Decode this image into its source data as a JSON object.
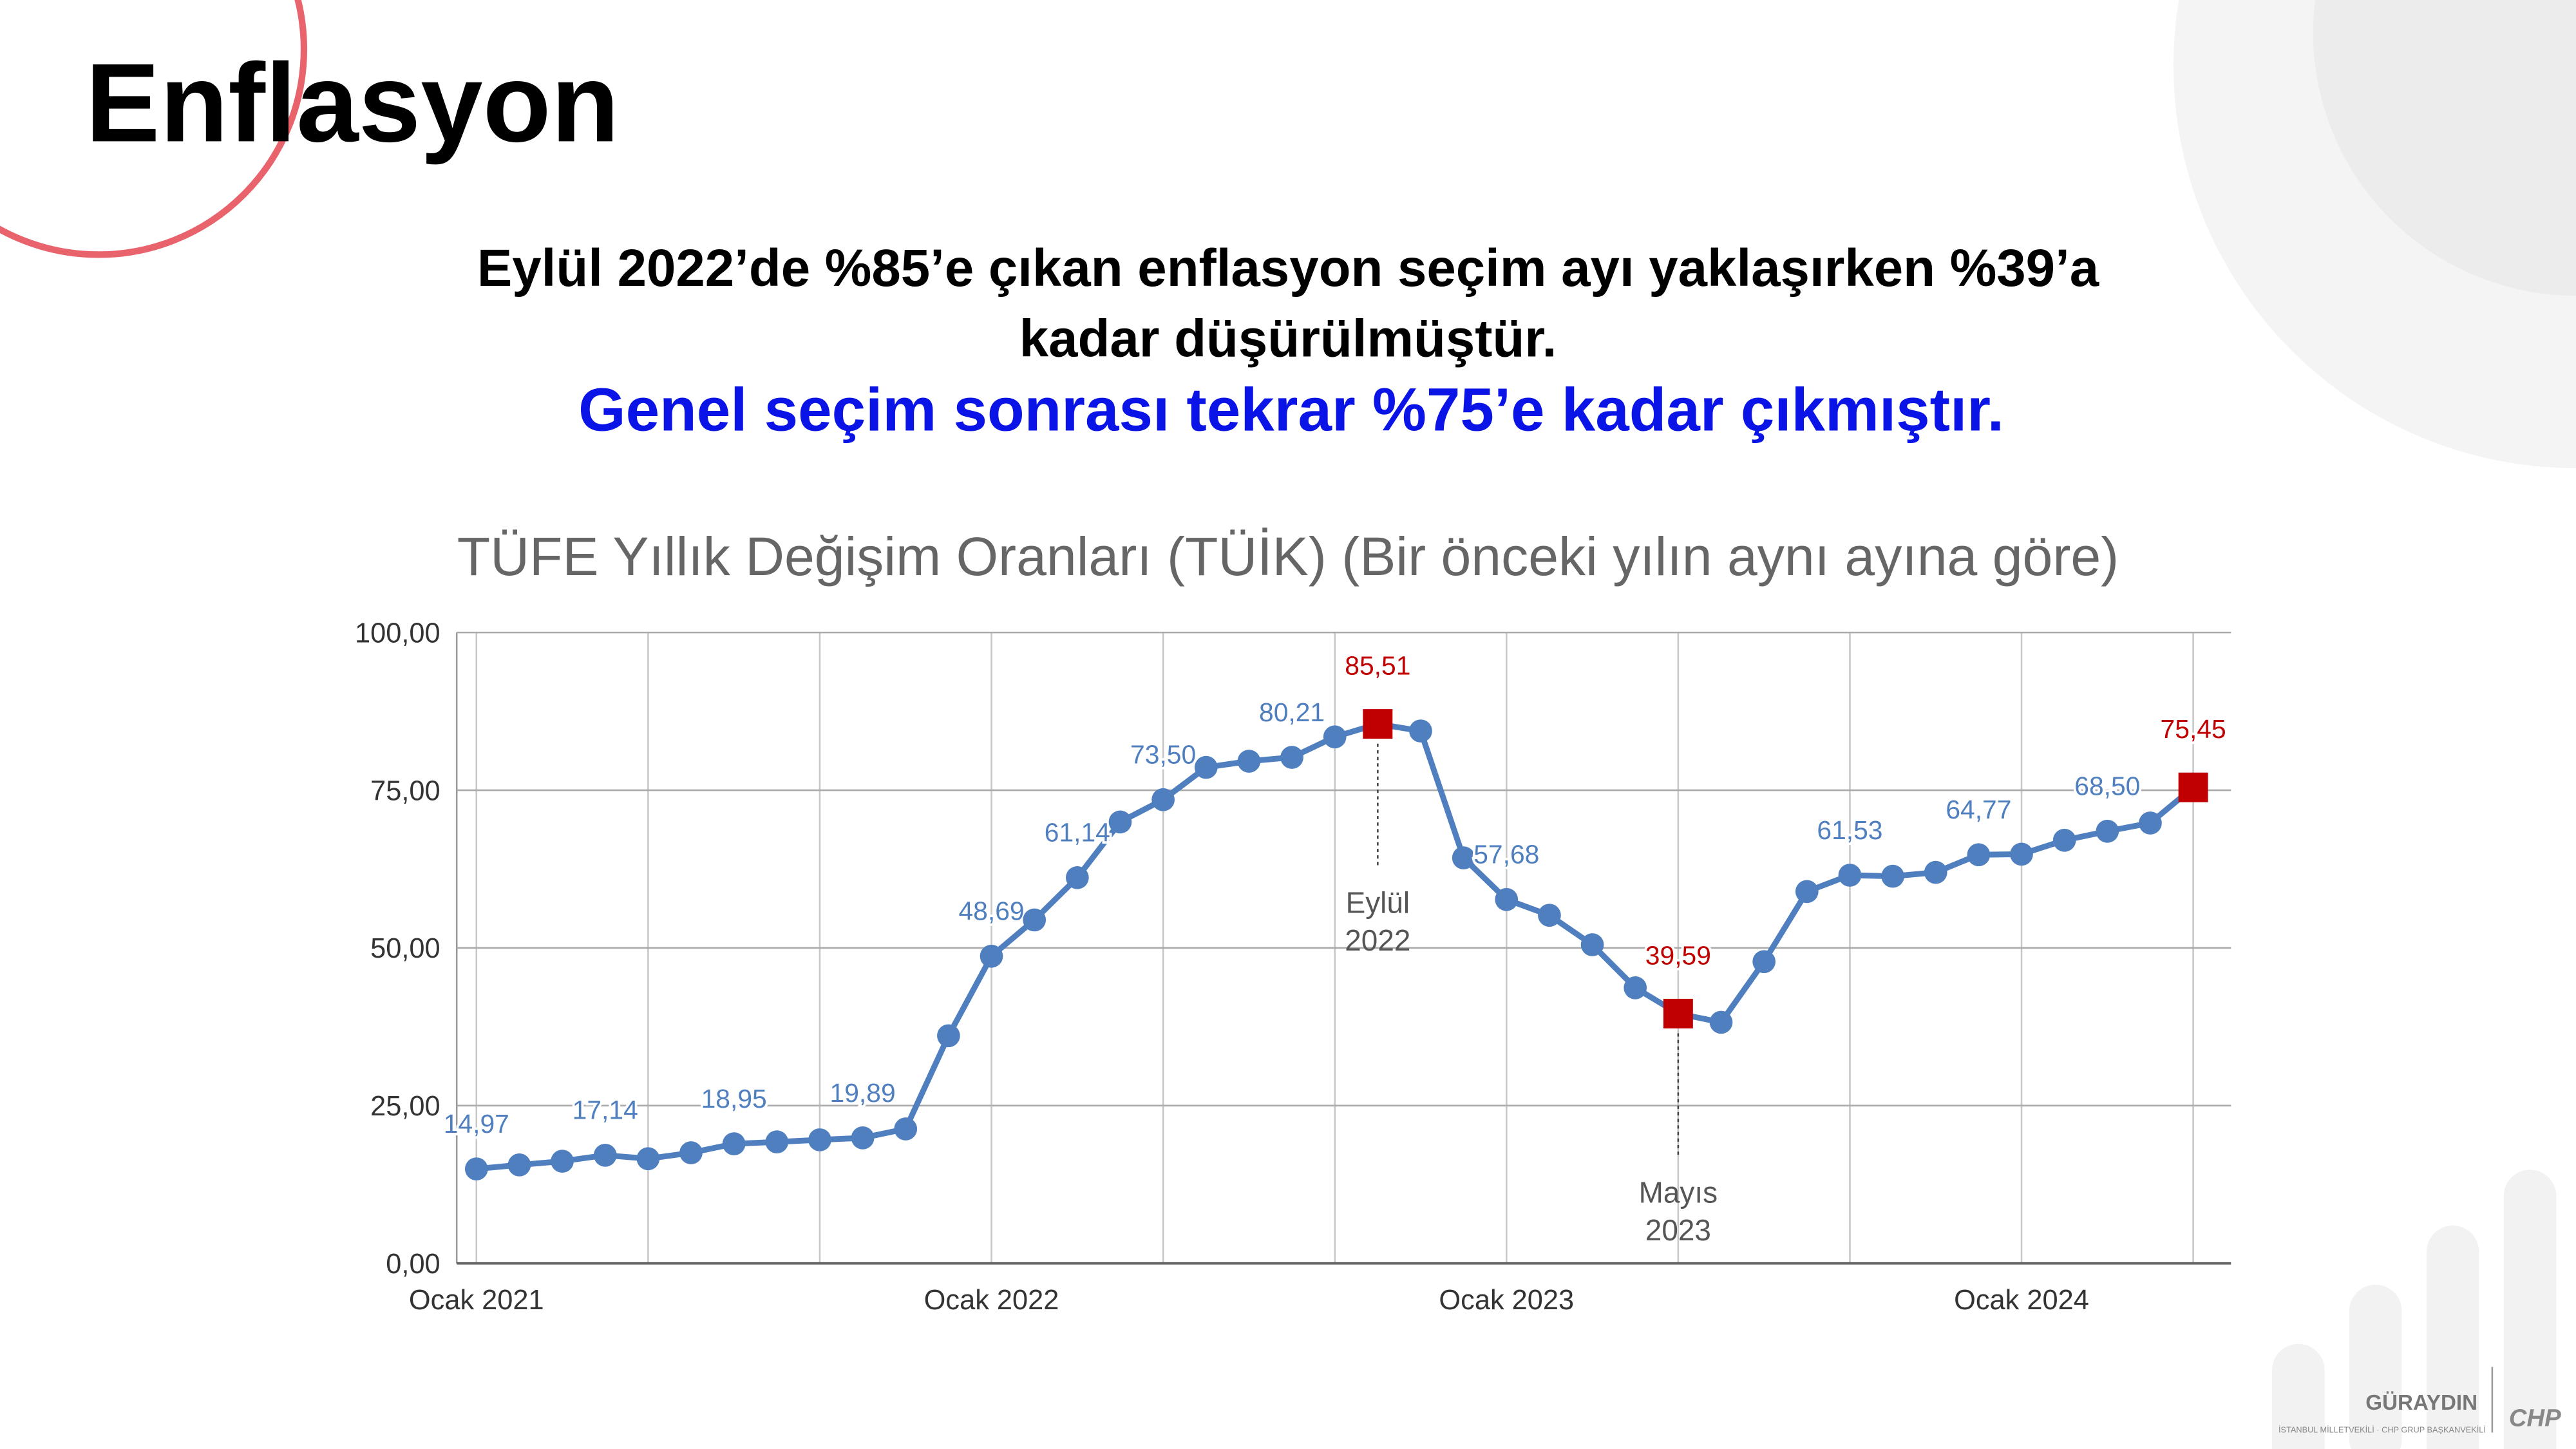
{
  "header": {
    "title": "Enflasyon",
    "lines": [
      "Eylül 2022’de %85’e çıkan enflasyon seçim ayı yaklaşırken %39’a",
      "kadar düşürülmüştür."
    ],
    "highlight": "Genel seçim sonrası tekrar %75’e kadar çıkmıştır."
  },
  "chart_data": {
    "type": "line",
    "title": "TÜFE Yıllık Değişim Oranları (TÜİK) (Bir önceki yılın aynı ayına göre)",
    "categories": [
      "Ocak 2021",
      null,
      null,
      null,
      null,
      null,
      null,
      null,
      null,
      null,
      null,
      null,
      "Ocak 2022",
      null,
      null,
      null,
      null,
      null,
      null,
      null,
      null,
      null,
      null,
      null,
      "Ocak 2023",
      null,
      null,
      null,
      null,
      null,
      null,
      null,
      null,
      null,
      null,
      null,
      "Ocak 2024",
      null,
      null,
      null,
      null
    ],
    "series": [
      {
        "color": "#4f7fbf",
        "values": [
          14.97,
          15.61,
          16.19,
          17.14,
          16.59,
          17.53,
          18.95,
          19.25,
          19.58,
          19.89,
          21.31,
          36.08,
          48.69,
          54.44,
          61.14,
          69.97,
          73.5,
          78.62,
          79.6,
          80.21,
          83.45,
          85.51,
          84.39,
          64.27,
          57.68,
          55.18,
          50.51,
          43.68,
          39.59,
          38.21,
          47.83,
          58.94,
          61.53,
          61.36,
          61.98,
          64.77,
          64.86,
          67.07,
          68.5,
          69.8,
          75.45
        ],
        "value_labels": [
          "14,97",
          null,
          null,
          "17,14",
          null,
          null,
          "18,95",
          null,
          null,
          "19,89",
          null,
          null,
          "48,69",
          null,
          "61,14",
          null,
          "73,50",
          null,
          null,
          "80,21",
          null,
          "85,51",
          null,
          null,
          "57,68",
          null,
          null,
          null,
          "39,59",
          null,
          null,
          null,
          "61,53",
          null,
          null,
          "64,77",
          null,
          null,
          "68,50",
          null,
          "75,45"
        ],
        "marker_colors": [
          "#4f7fbf",
          "#4f7fbf",
          "#4f7fbf",
          "#4f7fbf",
          "#4f7fbf",
          "#4f7fbf",
          "#4f7fbf",
          "#4f7fbf",
          "#4f7fbf",
          "#4f7fbf",
          "#4f7fbf",
          "#4f7fbf",
          "#4f7fbf",
          "#4f7fbf",
          "#4f7fbf",
          "#4f7fbf",
          "#4f7fbf",
          "#4f7fbf",
          "#4f7fbf",
          "#4f7fbf",
          "#4f7fbf",
          "#c00000",
          "#4f7fbf",
          "#4f7fbf",
          "#4f7fbf",
          "#4f7fbf",
          "#4f7fbf",
          "#4f7fbf",
          "#c00000",
          "#4f7fbf",
          "#4f7fbf",
          "#4f7fbf",
          "#4f7fbf",
          "#4f7fbf",
          "#4f7fbf",
          "#4f7fbf",
          "#4f7fbf",
          "#4f7fbf",
          "#4f7fbf",
          "#4f7fbf",
          "#c00000"
        ]
      }
    ],
    "annotations": [
      null,
      null,
      null,
      null,
      null,
      null,
      null,
      null,
      null,
      null,
      null,
      null,
      null,
      null,
      null,
      null,
      null,
      null,
      null,
      null,
      null,
      [
        "Eylül",
        "2022"
      ],
      null,
      null,
      null,
      null,
      null,
      null,
      [
        "Mayıs",
        "2023"
      ],
      null,
      null,
      null,
      null,
      null,
      null,
      null,
      null,
      null,
      null,
      null,
      null
    ],
    "ylim": [
      0,
      100
    ],
    "yticks": [
      {
        "value": 0,
        "label": "0,00"
      },
      {
        "value": 25,
        "label": "25,00"
      },
      {
        "value": 50,
        "label": "50,00"
      },
      {
        "value": 75,
        "label": "75,00"
      },
      {
        "value": 100,
        "label": "100,00"
      }
    ],
    "grid": true
  },
  "footer": {
    "name": "GÜRAYDIN",
    "party": "CHP",
    "note": "İSTANBUL MİLLETVEKİLİ · CHP GRUP BAŞKANVEKİLİ"
  }
}
